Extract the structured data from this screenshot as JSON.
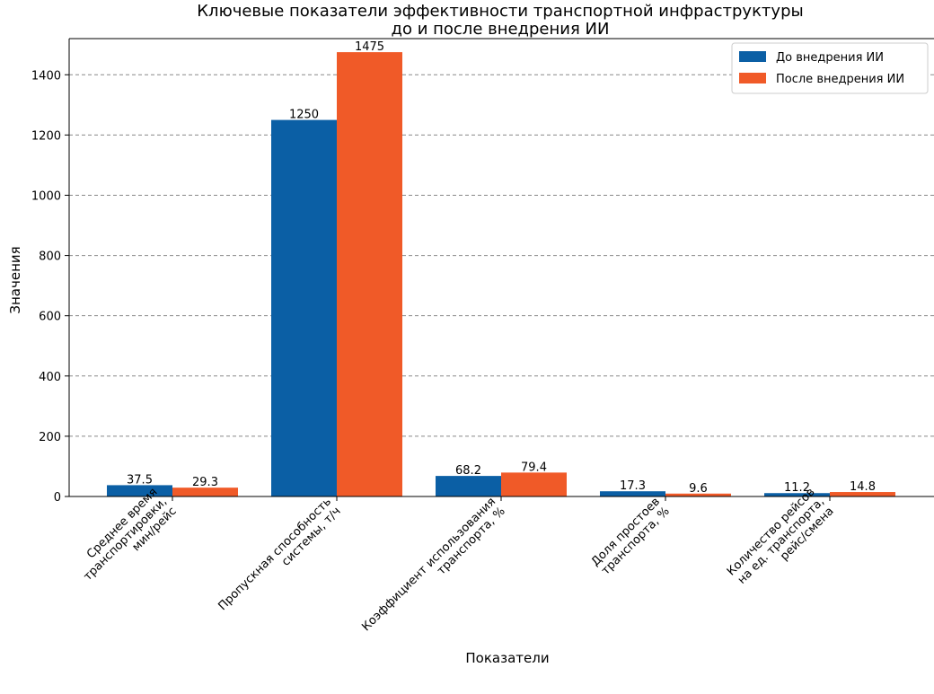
{
  "chart_data": {
    "type": "bar",
    "title_lines": [
      "Ключевые показатели эффективности транспортной инфраструктуры",
      "до и после внедрения ИИ"
    ],
    "xlabel": "Показатели",
    "ylabel": "Значения",
    "categories": [
      [
        "Среднее время",
        "транспортировки,",
        "мин/рейс"
      ],
      [
        "Пропускная способность",
        "системы, т/ч"
      ],
      [
        "Коэффициент использования",
        "транспорта, %"
      ],
      [
        "Доля простоев",
        "транспорта, %"
      ],
      [
        "Количество рейсов",
        "на ед. транспорта,",
        "рейс/смена"
      ]
    ],
    "series": [
      {
        "name": "До внедрения ИИ",
        "color": "#0b5fa5",
        "values": [
          37.5,
          1250,
          68.2,
          17.3,
          11.2
        ]
      },
      {
        "name": "После внедрения ИИ",
        "color": "#f05a28",
        "values": [
          29.3,
          1475,
          79.4,
          9.6,
          14.8
        ]
      }
    ],
    "value_labels": [
      [
        "37.5",
        "1250",
        "68.2",
        "17.3",
        "11.2"
      ],
      [
        "29.3",
        "1475",
        "79.4",
        "9.6",
        "14.8"
      ]
    ],
    "yticks": [
      0,
      200,
      400,
      600,
      800,
      1000,
      1200,
      1400
    ],
    "ylim": [
      0,
      1520
    ],
    "grid": "horizontal-dashed",
    "legend_position": "top-right"
  }
}
